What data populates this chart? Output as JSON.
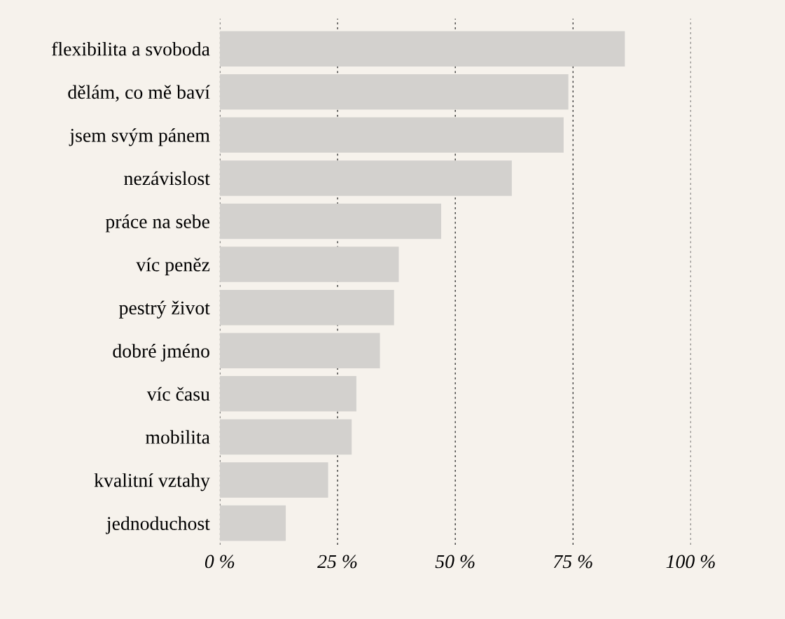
{
  "chart_data": {
    "type": "bar",
    "orientation": "horizontal",
    "categories": [
      "flexibilita a svoboda",
      "dělám, co mě baví",
      "jsem svým pánem",
      "nezávislost",
      "práce na sebe",
      "víc peněz",
      "pestrý život",
      "dobré jméno",
      "víc času",
      "mobilita",
      "kvalitní vztahy",
      "jednoduchost"
    ],
    "values": [
      86,
      74,
      73,
      62,
      47,
      38,
      37,
      34,
      29,
      28,
      23,
      14
    ],
    "color": "#d3d1ce",
    "xlim": [
      0,
      100
    ],
    "xticks": [
      {
        "value": 0,
        "label": "0 %"
      },
      {
        "value": 25,
        "label": "25 %"
      },
      {
        "value": 50,
        "label": "50 %"
      },
      {
        "value": 75,
        "label": "75 %"
      },
      {
        "value": 100,
        "label": "100 %"
      }
    ],
    "grid": "x"
  }
}
